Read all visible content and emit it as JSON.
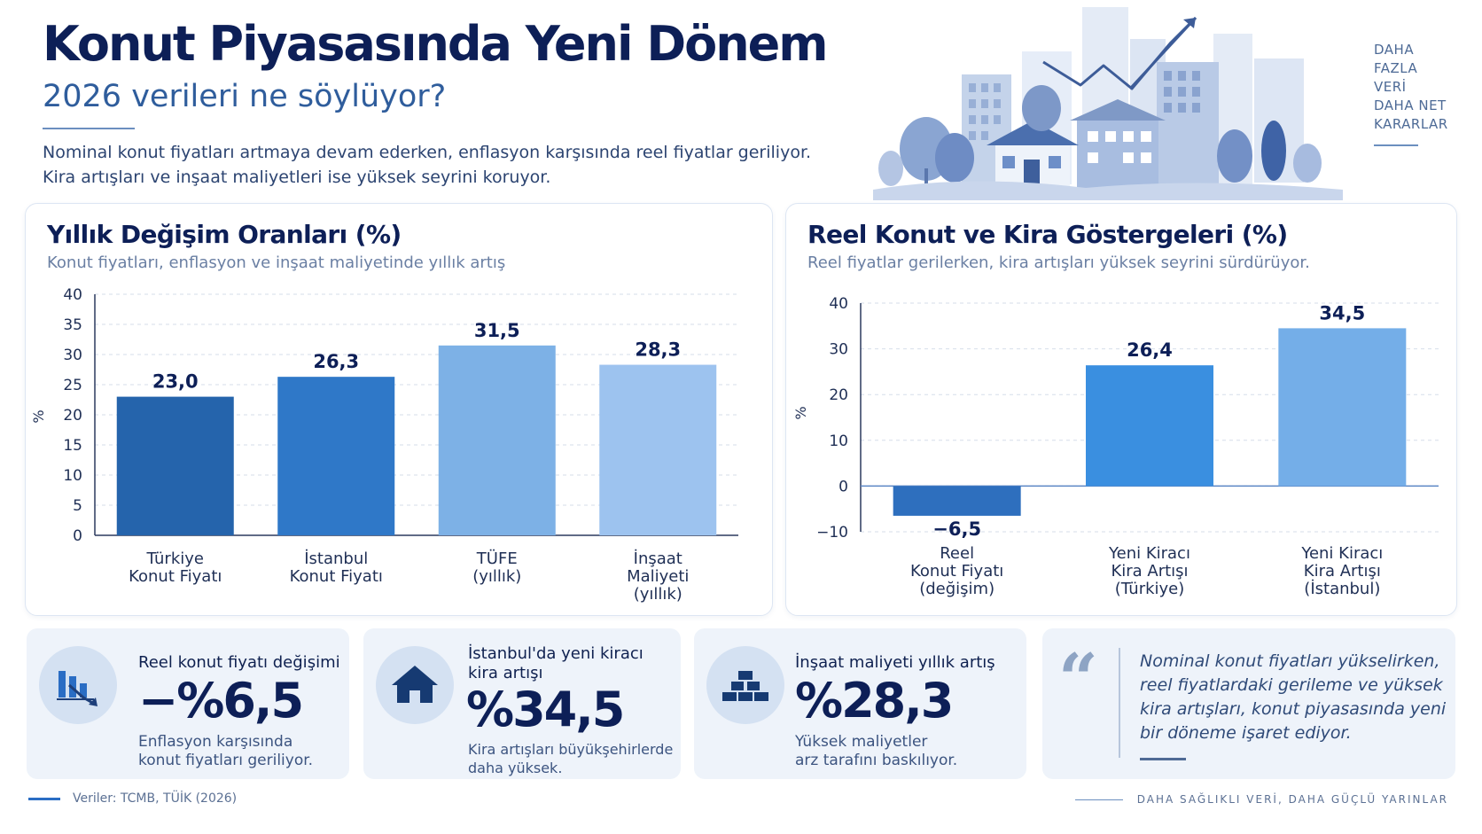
{
  "header": {
    "title": "Konut Piyasasında Yeni Dönem",
    "subtitle": "2026 verileri ne söylüyor?",
    "lead_line1": "Nominal konut fiyatları artmaya devam ederken, enflasyon karşısında reel fiyatlar geriliyor.",
    "lead_line2": "Kira artışları ve inşaat maliyetleri ise yüksek seyrini koruyor."
  },
  "side_tagline": [
    "DAHA",
    "FAZLA",
    "VERİ",
    "DAHA NET",
    "KARARLAR"
  ],
  "colors": {
    "navy": "#0d1f57",
    "dark_blue": "#2564ac",
    "mid_blue": "#3a86d4",
    "light_blue": "#7db1e6",
    "pale_blue": "#9dc3ef",
    "grid": "#d6deea"
  },
  "chart_data": [
    {
      "type": "bar",
      "title": "Yıllık Değişim Oranları (%)",
      "subtitle": "Konut fiyatları, enflasyon ve inşaat maliyetinde yıllık artış",
      "ylabel": "%",
      "ylim": [
        0,
        40
      ],
      "yticks": [
        "0",
        "5",
        "10",
        "15",
        "20",
        "25",
        "30",
        "35",
        "40"
      ],
      "categories": [
        [
          "Türkiye",
          "Konut Fiyatı"
        ],
        [
          "İstanbul",
          "Konut Fiyatı"
        ],
        [
          "TÜFE",
          "(yıllık)"
        ],
        [
          "İnşaat",
          "Maliyeti",
          "(yıllık)"
        ]
      ],
      "values": [
        23.0,
        26.3,
        31.5,
        28.3
      ],
      "value_labels": [
        "23,0",
        "26,3",
        "31,5",
        "28,3"
      ],
      "bar_colors": [
        "#2564ac",
        "#2f78c8",
        "#7db1e6",
        "#9dc3ef"
      ],
      "grid": true
    },
    {
      "type": "bar",
      "title": "Reel Konut ve Kira Göstergeleri (%)",
      "subtitle": "Reel fiyatlar gerilerken, kira artışları yüksek seyrini sürdürüyor.",
      "ylabel": "%",
      "ylim": [
        -10,
        40
      ],
      "yticks": [
        "−10",
        "0",
        "10",
        "20",
        "30",
        "40"
      ],
      "categories": [
        [
          "Reel",
          "Konut Fiyatı",
          "(değişim)"
        ],
        [
          "Yeni Kiracı",
          "Kira Artışı",
          "(Türkiye)"
        ],
        [
          "Yeni Kiracı",
          "Kira Artışı",
          "(İstanbul)"
        ]
      ],
      "values": [
        -6.5,
        26.4,
        34.5
      ],
      "value_labels": [
        "−6,5",
        "26,4",
        "34,5"
      ],
      "bar_colors": [
        "#2e6fbe",
        "#3a8fe0",
        "#74aee8"
      ],
      "grid": true
    }
  ],
  "cards": [
    {
      "icon": "chart-down-icon",
      "label": "Reel konut fiyatı değişimi",
      "value": "−%6,5",
      "note_line1": "Enflasyon karşısında",
      "note_line2": "konut fiyatları geriliyor."
    },
    {
      "icon": "house-icon",
      "label_line1": "İstanbul'da yeni kiracı",
      "label_line2": "kira artışı",
      "value": "%34,5",
      "note_line1": "Kira artışları büyükşehirlerde",
      "note_line2": "daha yüksek."
    },
    {
      "icon": "bricks-icon",
      "label": "İnşaat maliyeti yıllık artış",
      "value": "%28,3",
      "note_line1": "Yüksek maliyetler",
      "note_line2": "arz tarafını baskılıyor."
    }
  ],
  "quote": {
    "mark": "“",
    "text": "Nominal konut fiyatları yükselirken, reel fiyatlardaki gerileme ve yüksek kira artışları, konut piyasasında yeni bir döneme işaret ediyor."
  },
  "footer": {
    "source": "Veriler: TCMB, TÜİK (2026)",
    "tagline": "DAHA SAĞLIKLI VERİ, DAHA GÜÇLÜ YARINLAR"
  }
}
